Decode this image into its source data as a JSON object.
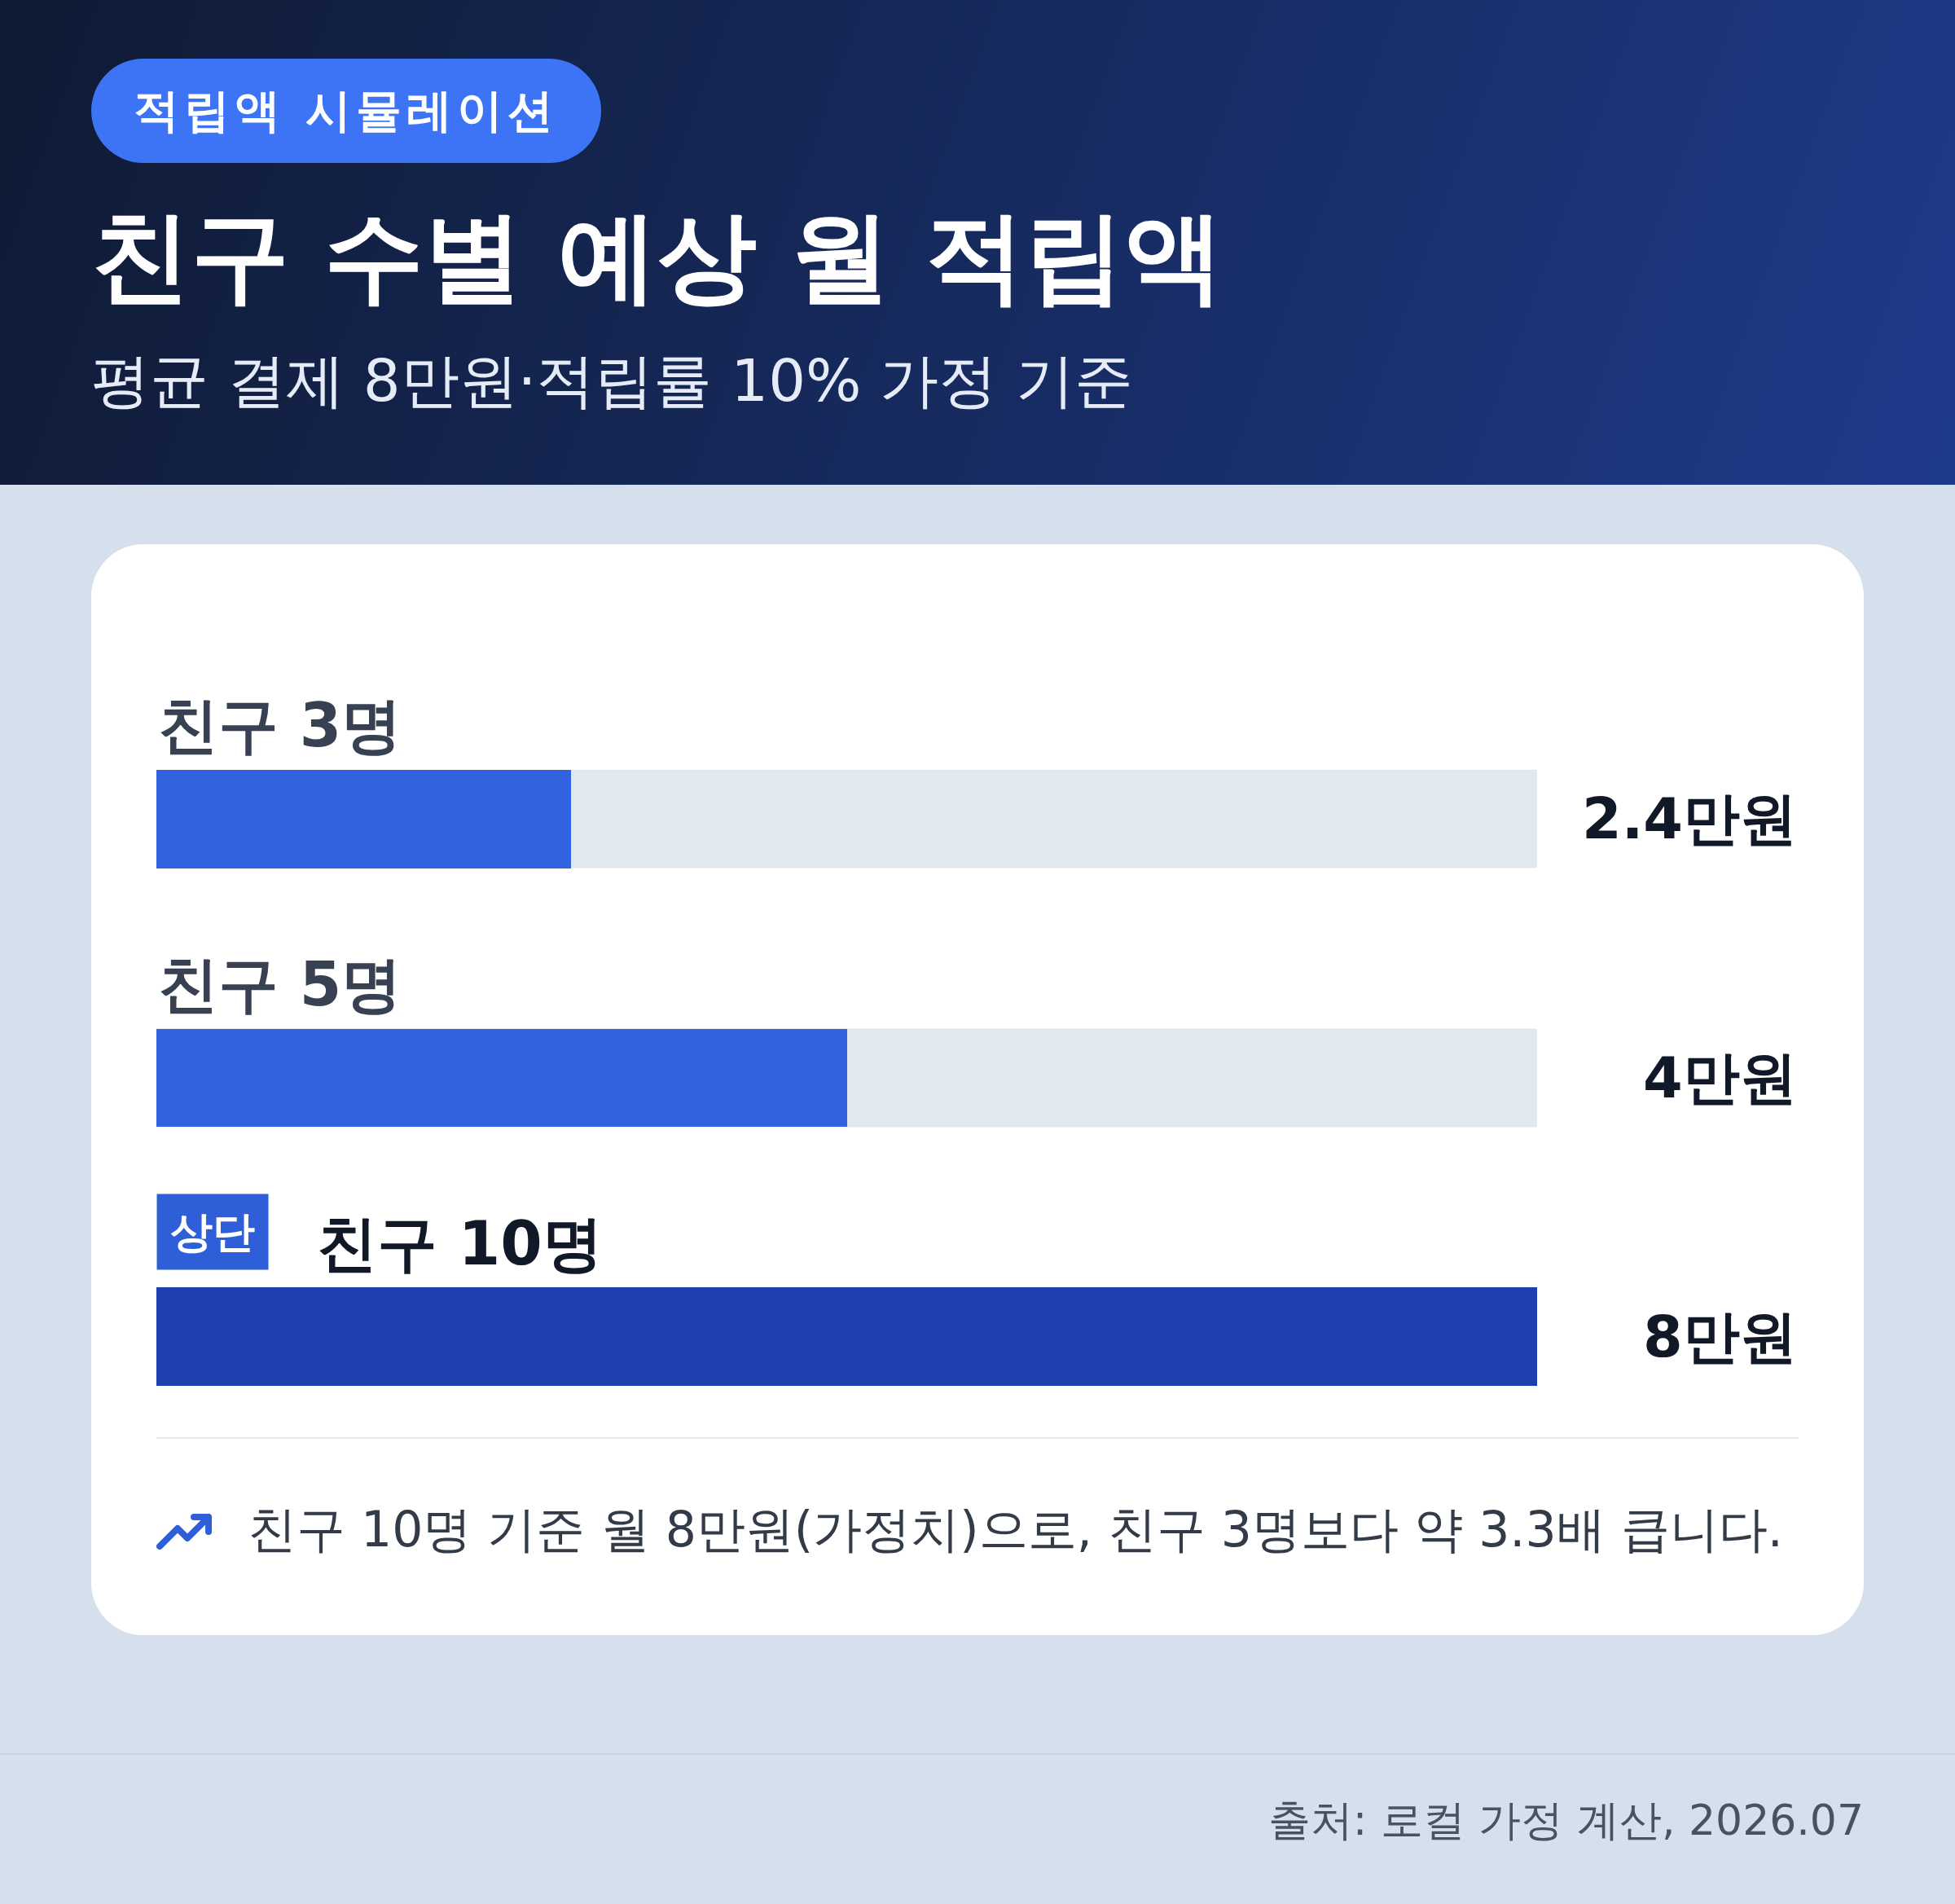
{
  "chart_data": {
    "type": "bar",
    "orientation": "horizontal",
    "title": "친구 수별 예상 월 적립액",
    "subtitle": "평균 결제 8만원·적립률 10% 가정 기준",
    "categories": [
      "친구 3명",
      "친구 5명",
      "친구 10명"
    ],
    "values": [
      2.4,
      4,
      8
    ],
    "colors": [
      "#3162e0",
      "#3162e0",
      "#1e40ae"
    ],
    "value_labels": [
      "2.4만원",
      "4만원",
      "8만원"
    ],
    "xlim": [
      0,
      8
    ],
    "tick_labels": "y",
    "annotations": [
      {
        "text": "적립액 시뮬레이션"
      },
      "상단",
      {
        "text": "친구 10명 기준 월 8만원(가정치)으로, 친구 3명보다 약 3.3배 큽니다."
      },
      {
        "text": "출처: 로컬 가정 계산, 2026.07"
      }
    ]
  }
}
